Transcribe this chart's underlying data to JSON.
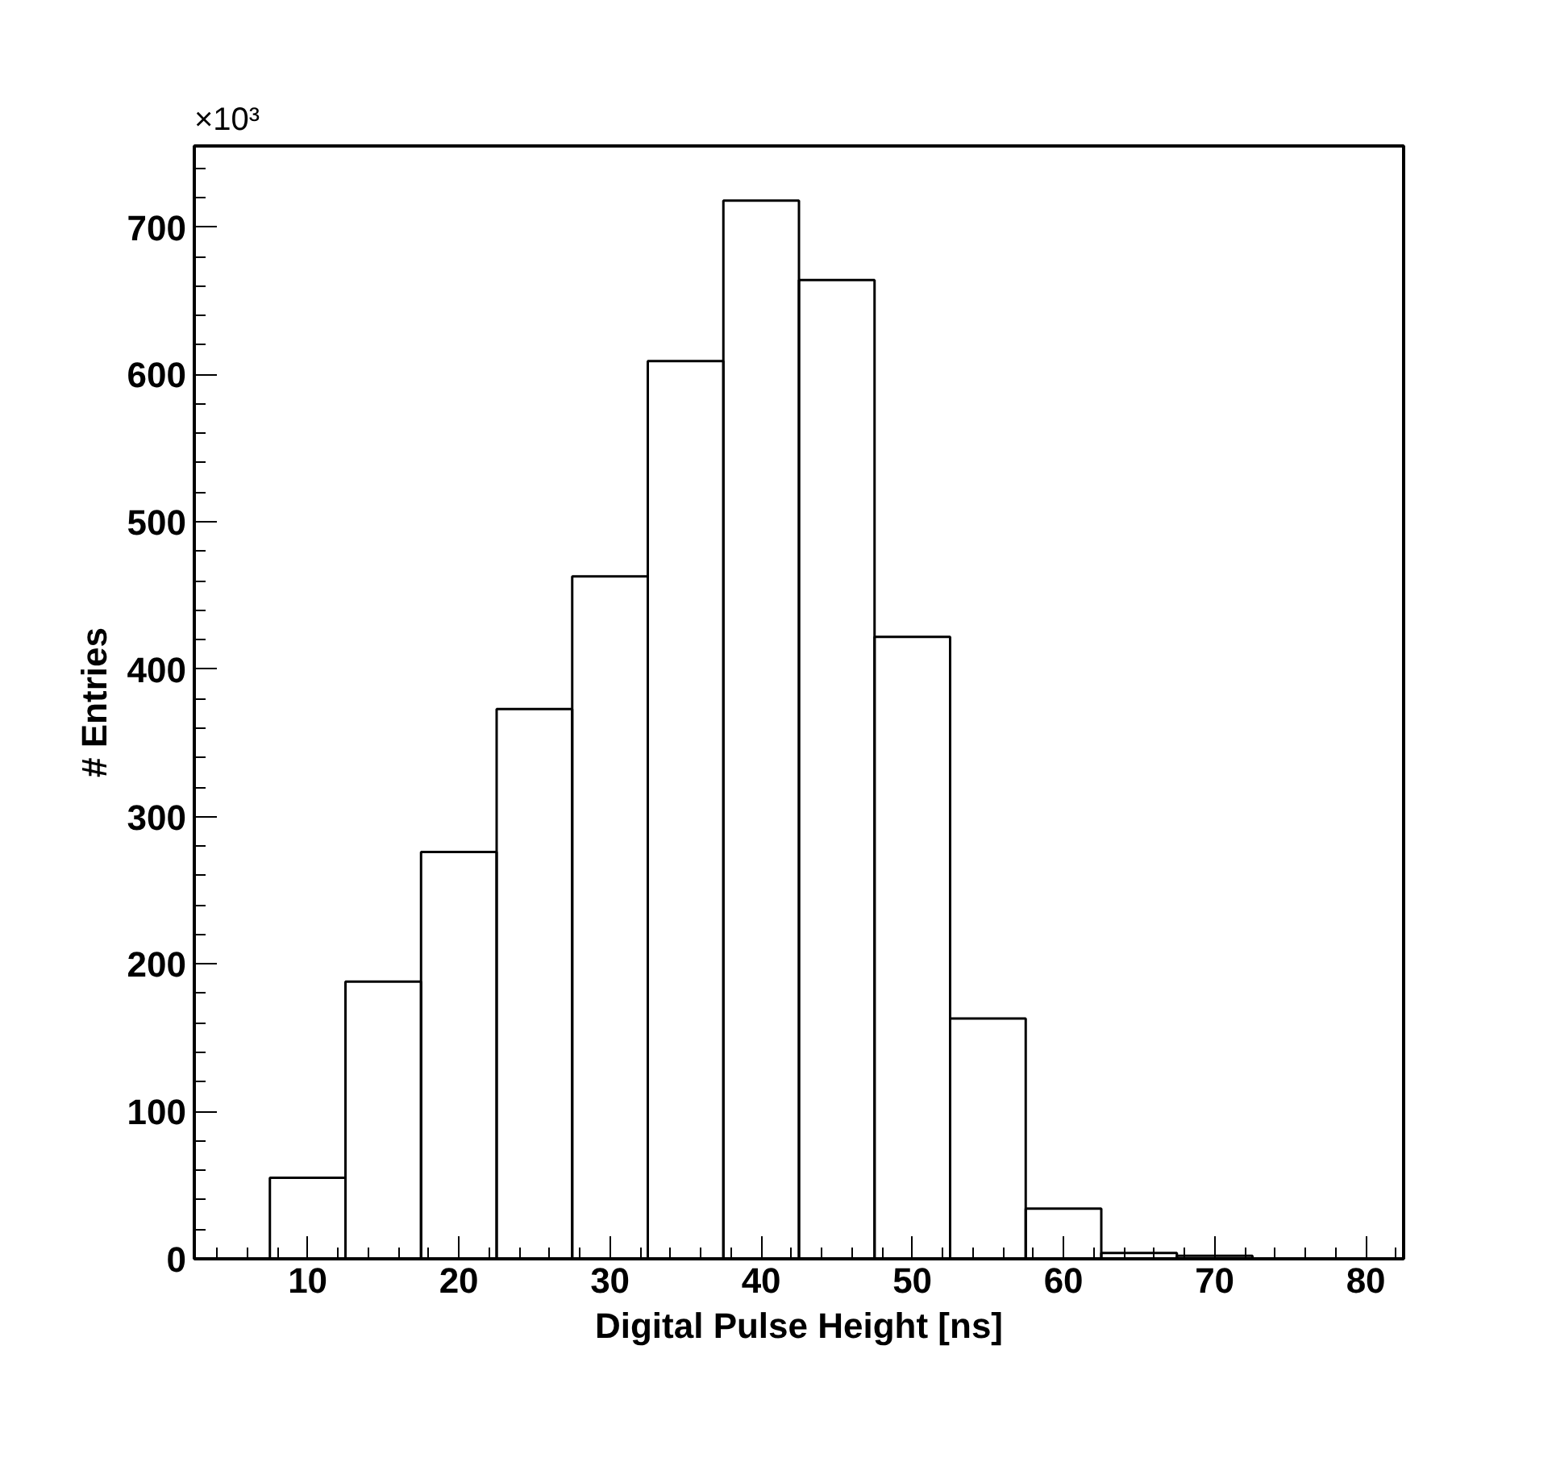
{
  "chart_data": {
    "type": "histogram",
    "xlabel": "Digital Pulse Height [ns]",
    "ylabel": "# Entries",
    "annotations": [
      "×10³"
    ],
    "bins": [
      7.5,
      12.5,
      17.5,
      22.5,
      27.5,
      32.5,
      37.5,
      42.5,
      47.5,
      52.5,
      57.5,
      62.5,
      67.5,
      72.5,
      77.5,
      82.5
    ],
    "values": [
      55,
      188,
      276,
      373,
      463,
      609,
      718,
      664,
      422,
      163,
      34,
      4,
      2,
      0,
      0
    ],
    "color": "#000000",
    "xlim": [
      2.5,
      82.5
    ],
    "xticks": [
      10,
      20,
      30,
      40,
      50,
      60,
      70,
      80
    ],
    "ylim": [
      0,
      755
    ],
    "yticks": [
      0,
      100,
      200,
      300,
      400,
      500,
      600,
      700
    ],
    "grid": false
  }
}
